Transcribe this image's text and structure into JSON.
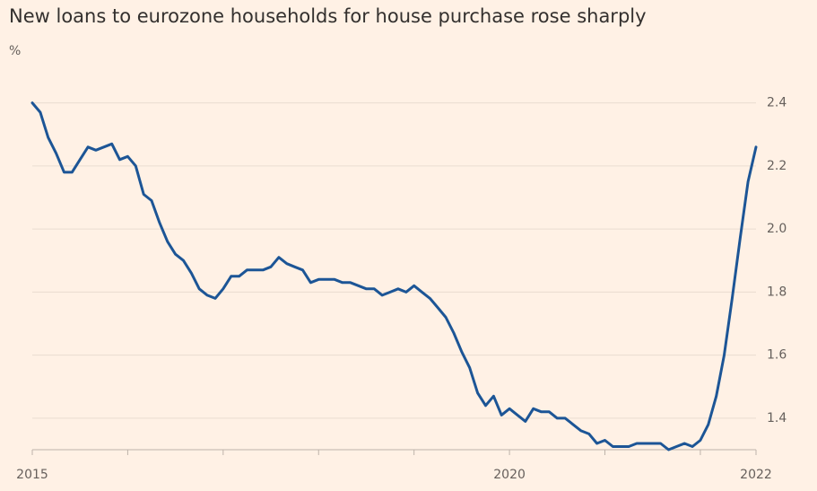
{
  "chart_data": {
    "type": "line",
    "title": "New loans to eurozone households for house purchase rose sharply",
    "y_label": "%",
    "categories": [
      "2015",
      null,
      null,
      null,
      null,
      null,
      null,
      null,
      null,
      null,
      null,
      null,
      null,
      null,
      null,
      null,
      null,
      null,
      null,
      null,
      null,
      null,
      null,
      null,
      null,
      null,
      null,
      null,
      null,
      null,
      null,
      null,
      null,
      null,
      null,
      null,
      null,
      null,
      null,
      null,
      null,
      null,
      null,
      null,
      null,
      null,
      null,
      null,
      null,
      null,
      null,
      null,
      null,
      null,
      null,
      null,
      null,
      null,
      null,
      null,
      "2020",
      null,
      null,
      null,
      null,
      null,
      null,
      null,
      null,
      null,
      null,
      null,
      null,
      null,
      null,
      null,
      null,
      null,
      null,
      null,
      null,
      null,
      null,
      null,
      null,
      null,
      null,
      null,
      null,
      null,
      null,
      "2022"
    ],
    "values": [
      2.4,
      2.37,
      2.29,
      2.24,
      2.18,
      2.18,
      2.22,
      2.26,
      2.25,
      2.26,
      2.27,
      2.22,
      2.23,
      2.2,
      2.11,
      2.09,
      2.02,
      1.96,
      1.92,
      1.9,
      1.86,
      1.81,
      1.79,
      1.78,
      1.81,
      1.85,
      1.85,
      1.87,
      1.87,
      1.87,
      1.88,
      1.91,
      1.89,
      1.88,
      1.87,
      1.83,
      1.84,
      1.84,
      1.84,
      1.83,
      1.83,
      1.82,
      1.81,
      1.81,
      1.79,
      1.8,
      1.81,
      1.8,
      1.82,
      1.8,
      1.78,
      1.75,
      1.72,
      1.67,
      1.61,
      1.56,
      1.48,
      1.44,
      1.47,
      1.41,
      1.43,
      1.41,
      1.39,
      1.43,
      1.42,
      1.42,
      1.4,
      1.4,
      1.38,
      1.36,
      1.35,
      1.32,
      1.33,
      1.31,
      1.31,
      1.31,
      1.32,
      1.32,
      1.32,
      1.32,
      1.3,
      1.31,
      1.32,
      1.31,
      1.33,
      1.38,
      1.47,
      1.6,
      1.78,
      1.97,
      2.15,
      2.26
    ],
    "color": "#1c5596",
    "ylim": [
      1.3,
      2.47
    ],
    "yticks": [
      1.4,
      1.6,
      1.8,
      {
        "value": 2,
        "label": "2.0"
      },
      2.2,
      2.4
    ],
    "grid": true
  }
}
